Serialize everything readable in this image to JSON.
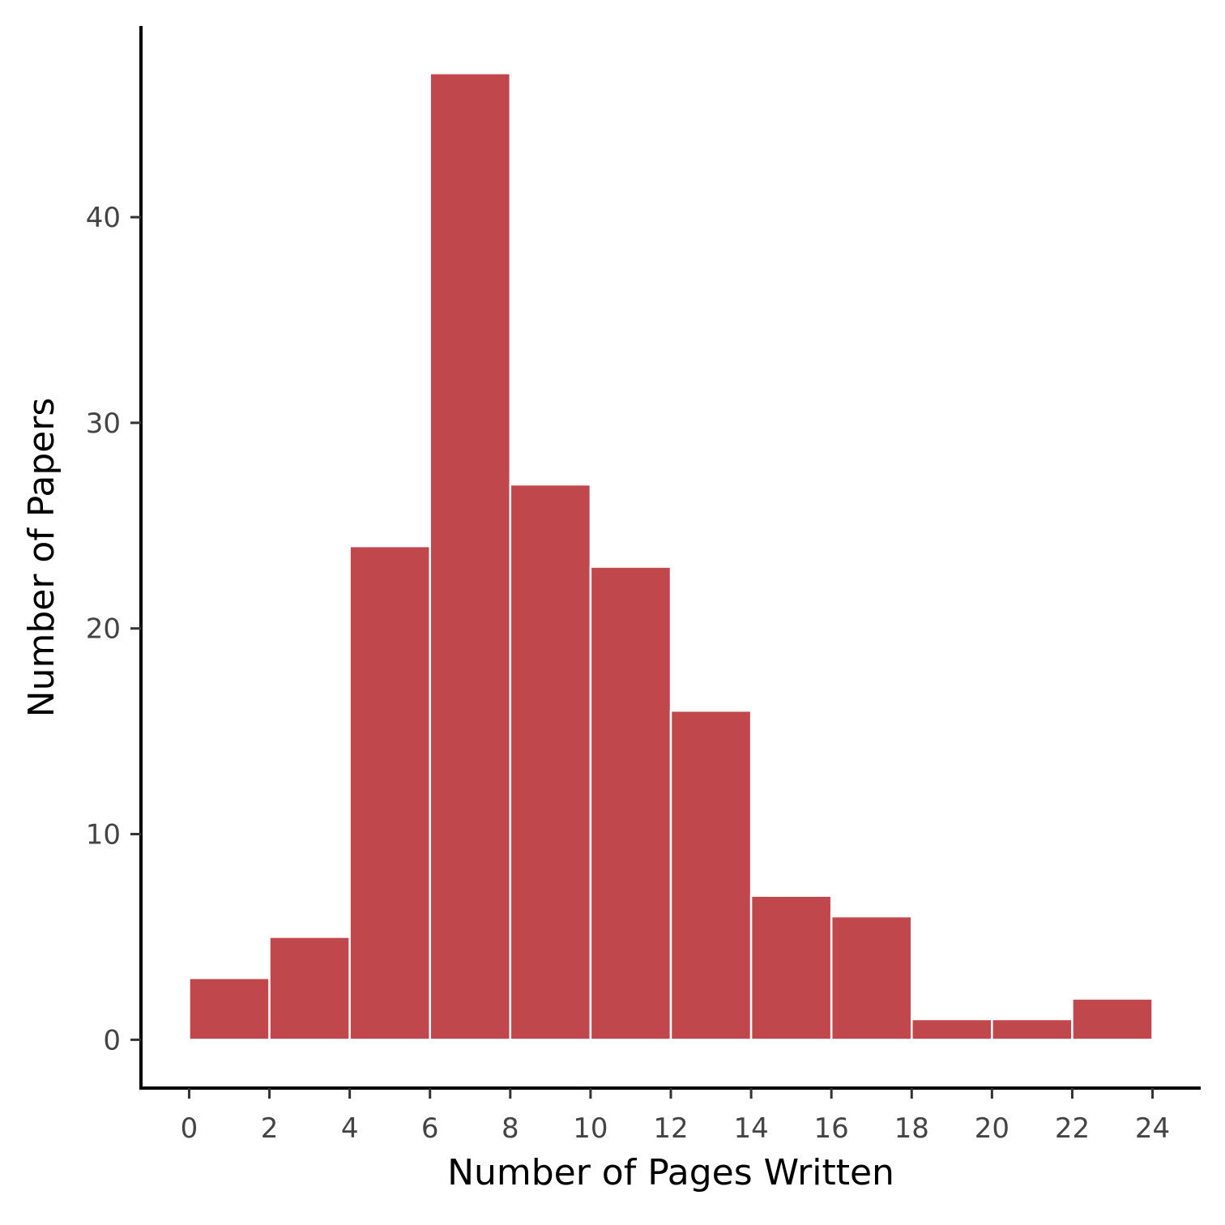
{
  "chart_data": {
    "type": "bar",
    "title": "",
    "xlabel": "Number of Pages Written",
    "ylabel": "Number of Papers",
    "bins": [
      {
        "x0": 0,
        "x1": 2,
        "count": 3
      },
      {
        "x0": 2,
        "x1": 4,
        "count": 5
      },
      {
        "x0": 4,
        "x1": 6,
        "count": 24
      },
      {
        "x0": 6,
        "x1": 8,
        "count": 47
      },
      {
        "x0": 8,
        "x1": 10,
        "count": 27
      },
      {
        "x0": 10,
        "x1": 12,
        "count": 23
      },
      {
        "x0": 12,
        "x1": 14,
        "count": 16
      },
      {
        "x0": 14,
        "x1": 16,
        "count": 7
      },
      {
        "x0": 16,
        "x1": 18,
        "count": 6
      },
      {
        "x0": 18,
        "x1": 20,
        "count": 1
      },
      {
        "x0": 20,
        "x1": 22,
        "count": 1
      },
      {
        "x0": 22,
        "x1": 24,
        "count": 2
      }
    ],
    "xticks": [
      0,
      2,
      4,
      6,
      8,
      10,
      12,
      14,
      16,
      18,
      20,
      22,
      24
    ],
    "yticks": [
      0,
      10,
      20,
      30,
      40
    ],
    "xlim": [
      -1.2,
      25.2
    ],
    "ylim": [
      -2.35,
      49.3
    ],
    "bar_color": "#c0474b",
    "bar_edge_color": "#ffffff",
    "grid": false,
    "legend": "none"
  }
}
